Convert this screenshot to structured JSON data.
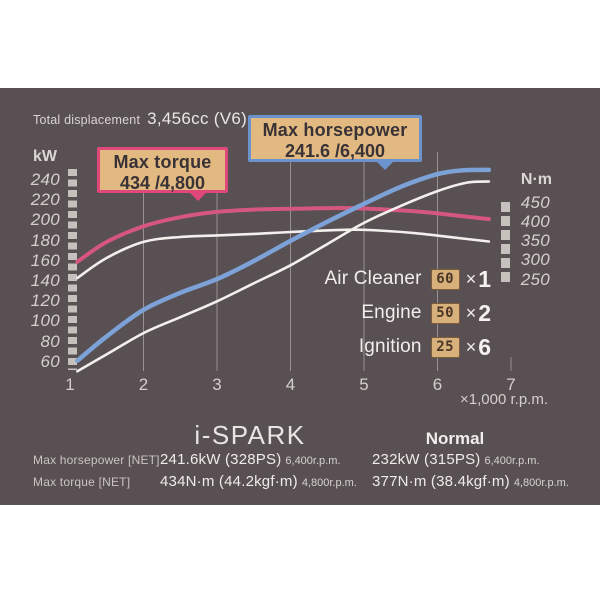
{
  "photo": {
    "bg": "#585052"
  },
  "header": {
    "prefix": "Total displacement",
    "value": "3,456cc (V6)"
  },
  "callouts": {
    "torque": {
      "title": "Max torque",
      "value": "434 /4,800",
      "border_color": "#e0487c",
      "fill_color": "#e2b981"
    },
    "horsepower": {
      "title": "Max horsepower",
      "value": "241.6 /6,400",
      "border_color": "#6b94ce",
      "fill_color": "#e2b981"
    }
  },
  "multipliers": {
    "box_fill": "#d8b07b",
    "box_border": "#7e5d39",
    "items": [
      {
        "label": "Air Cleaner",
        "count": "60",
        "times": "×",
        "factor": "1"
      },
      {
        "label": "Engine",
        "count": "50",
        "times": "×",
        "factor": "2"
      },
      {
        "label": "Ignition",
        "count": "25",
        "times": "×",
        "factor": "6"
      }
    ]
  },
  "chart_data": {
    "type": "line",
    "x_axis": {
      "label": "×1,000 r.p.m.",
      "ticks": [
        "1",
        "2",
        "3",
        "4",
        "5",
        "6",
        "7"
      ],
      "range": [
        1,
        7
      ]
    },
    "y_left_axis": {
      "label": "kW",
      "ticks": [
        240,
        220,
        200,
        180,
        160,
        140,
        120,
        100,
        80,
        60
      ],
      "range": [
        60,
        240
      ]
    },
    "y_right_axis": {
      "label": "N·m",
      "ticks": [
        450,
        400,
        350,
        300,
        250
      ],
      "range": [
        250,
        450
      ]
    },
    "grid": {
      "vertical_gridlines_at": [
        2,
        3,
        4,
        5,
        6
      ],
      "short_tick_at": 7
    },
    "series": [
      {
        "name": "Normal torque (N·m)",
        "axis": "right",
        "color": "#f2efec",
        "width": 2.6,
        "points": [
          [
            1.1,
            250
          ],
          [
            1.5,
            303
          ],
          [
            2,
            345
          ],
          [
            2.5,
            358
          ],
          [
            3,
            362
          ],
          [
            3.5,
            366
          ],
          [
            4,
            371
          ],
          [
            4.8,
            377
          ],
          [
            5.2,
            375
          ],
          [
            5.7,
            368
          ],
          [
            6.2,
            357
          ],
          [
            6.7,
            346
          ]
        ]
      },
      {
        "name": "i-SPARK torque (N·m)",
        "axis": "right",
        "color": "#d5567f",
        "width": 4,
        "points": [
          [
            1.1,
            293
          ],
          [
            1.5,
            345
          ],
          [
            2,
            386
          ],
          [
            2.5,
            410
          ],
          [
            3,
            424
          ],
          [
            3.5,
            430
          ],
          [
            4,
            432
          ],
          [
            4.8,
            434
          ],
          [
            5.5,
            428
          ],
          [
            6,
            420
          ],
          [
            6.7,
            405
          ]
        ]
      },
      {
        "name": "Normal power (kW)",
        "axis": "left",
        "color": "#f2efec",
        "width": 2.6,
        "points": [
          [
            1.1,
            52
          ],
          [
            1.5,
            68
          ],
          [
            2,
            88
          ],
          [
            2.5,
            103
          ],
          [
            3,
            118
          ],
          [
            3.5,
            135
          ],
          [
            4,
            152
          ],
          [
            4.5,
            172
          ],
          [
            5,
            192
          ],
          [
            5.5,
            208
          ],
          [
            6,
            222
          ],
          [
            6.4,
            230
          ],
          [
            6.7,
            231
          ]
        ]
      },
      {
        "name": "i-SPARK power (kW)",
        "axis": "left",
        "color": "#7da2d8",
        "width": 4.5,
        "points": [
          [
            1.1,
            62
          ],
          [
            1.5,
            85
          ],
          [
            2,
            110
          ],
          [
            2.5,
            126
          ],
          [
            3,
            139
          ],
          [
            3.5,
            156
          ],
          [
            4,
            175
          ],
          [
            4.5,
            193
          ],
          [
            5,
            210
          ],
          [
            5.5,
            226
          ],
          [
            6,
            238
          ],
          [
            6.35,
            241.6
          ],
          [
            6.7,
            242
          ]
        ]
      }
    ],
    "annotations": {
      "max_torque": "434 N·m @ 4,800 rpm",
      "max_horsepower": "241.6 kW @ 6,400 rpm"
    }
  },
  "table": {
    "ispark_header": "i-SPARK",
    "normal_header": "Normal",
    "rows": [
      {
        "label": "Max horsepower [NET]",
        "ispark": {
          "main": "241.6kW (328PS)",
          "rpm": "6,400r.p.m."
        },
        "normal": {
          "main": "232kW (315PS)",
          "rpm": "6,400r.p.m."
        }
      },
      {
        "label": "Max torque [NET]",
        "ispark": {
          "main": "434N·m (44.2kgf·m)",
          "rpm": "4,800r.p.m."
        },
        "normal": {
          "main": "377N·m (38.4kgf·m)",
          "rpm": "4,800r.p.m."
        }
      }
    ]
  }
}
